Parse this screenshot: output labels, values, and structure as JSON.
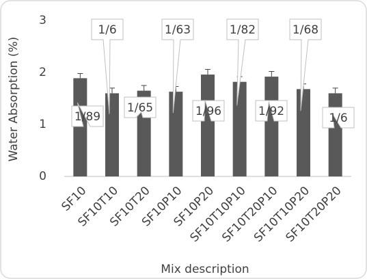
{
  "chart_data": {
    "type": "bar",
    "categories": [
      "SF10",
      "SF10T10",
      "SF10T20",
      "SF10P10",
      "SF10P20",
      "SF10T10P10",
      "SF10T20P10",
      "SF10T10P20",
      "SF10T20P20"
    ],
    "values": [
      1.89,
      1.6,
      1.65,
      1.63,
      1.96,
      1.82,
      1.92,
      1.68,
      1.6
    ],
    "value_labels": [
      "1/89",
      "1/6",
      "1/65",
      "1/63",
      "1/96",
      "1/82",
      "1/92",
      "1/68",
      "1/6"
    ],
    "errors": [
      0.09,
      0.1,
      0.1,
      0.1,
      0.1,
      0.1,
      0.1,
      0.1,
      0.1
    ],
    "color": "#595959",
    "x_label": "Mix description",
    "y_label": "Water Absorption (%)",
    "ylim": [
      0,
      3
    ],
    "yticks": [
      0,
      1,
      2,
      3
    ],
    "grid": false
  }
}
